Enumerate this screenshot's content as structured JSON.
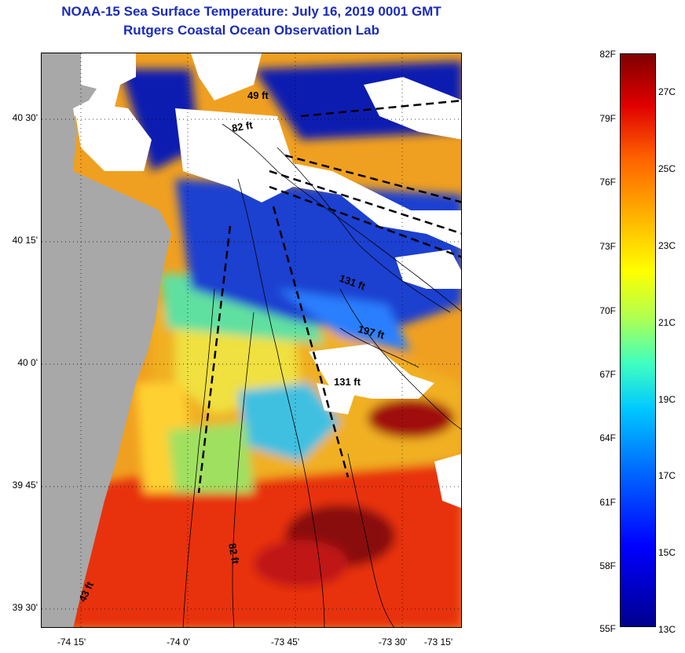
{
  "header": {
    "title": "NOAA-15 Sea Surface Temperature:  July 16, 2019 0001 GMT",
    "subtitle": "Rutgers Coastal Ocean Observation Lab"
  },
  "map": {
    "lat_labels": [
      "40 30'",
      "40 15'",
      "40 0'",
      "39 45'",
      "39 30'"
    ],
    "lon_labels": [
      "-74 15'",
      "-74 0'",
      "-73 45'",
      "-73 30'",
      "-73 15'"
    ],
    "depth_labels": [
      "49 ft",
      "82 ft",
      "131 ft",
      "197 ft",
      "131 ft",
      "82 ft",
      "43 ft"
    ],
    "colors": {
      "land": "#a8a8a8",
      "cloud": "#ffffff",
      "cold": "#0a1fb0",
      "cool": "#2a7fff",
      "cyan": "#40d0f0",
      "green": "#80e080",
      "yellow": "#f0e040",
      "orange": "#f09020",
      "red": "#e83010",
      "darkred": "#8a0a0a"
    }
  },
  "colorbar": {
    "fahrenheit": [
      "82F",
      "79F",
      "76F",
      "73F",
      "70F",
      "67F",
      "64F",
      "61F",
      "58F",
      "55F"
    ],
    "celsius": [
      "27C",
      "25C",
      "23C",
      "21C",
      "19C",
      "17C",
      "15C",
      "13C"
    ]
  }
}
